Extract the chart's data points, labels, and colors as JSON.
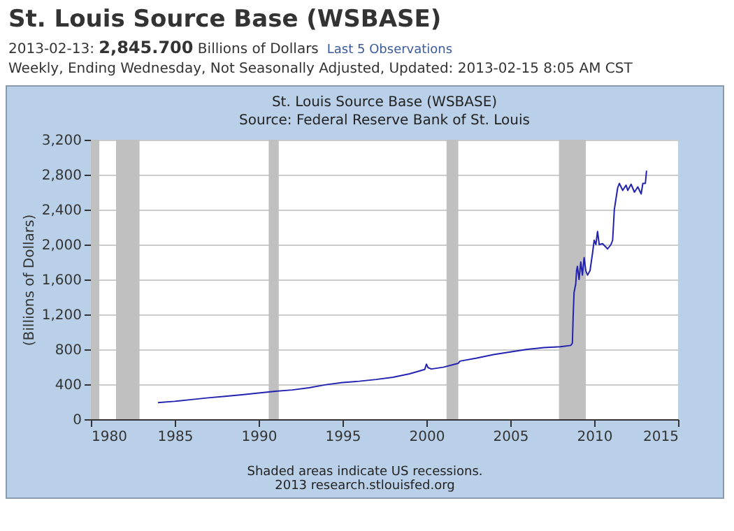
{
  "chart_data": {
    "type": "line",
    "title": "St. Louis Source Base (WSBASE)",
    "subtitle": "2013-02-13: 2,845.700 Billions of Dollars",
    "annotations": [
      "Last 5 Observations",
      "Weekly, Ending Wednesday, Not Seasonally Adjusted, Updated: 2013-02-15 8:05 AM CST",
      "St. Louis Source Base (WSBASE)",
      "Source: Federal Reserve Bank of St. Louis",
      "Shaded areas indicate US recessions.",
      "2013 research.stlouisfed.org"
    ],
    "ylabel": "(Billions of Dollars)",
    "x": [
      1984.0,
      1985,
      1986,
      1987,
      1988,
      1989,
      1990,
      1991,
      1992,
      1993,
      1994,
      1995,
      1996,
      1997,
      1998,
      1999,
      1999.9,
      2000.0,
      2000.1,
      2000.3,
      2001,
      2001.9,
      2002,
      2003,
      2004,
      2005,
      2006,
      2007,
      2008,
      2008.6,
      2008.7,
      2008.75,
      2008.8,
      2008.9,
      2008.95,
      2009.0,
      2009.1,
      2009.2,
      2009.3,
      2009.4,
      2009.5,
      2009.6,
      2009.75,
      2009.9,
      2010.0,
      2010.1,
      2010.2,
      2010.3,
      2010.5,
      2010.8,
      2011.0,
      2011.1,
      2011.2,
      2011.4,
      2011.5,
      2011.7,
      2011.9,
      2012.0,
      2012.2,
      2012.4,
      2012.6,
      2012.8,
      2012.9,
      2013.05,
      2013.12
    ],
    "series": [
      {
        "color": "#2222b0",
        "values": [
          190,
          205,
          225,
          245,
          262,
          280,
          300,
          320,
          335,
          360,
          395,
          420,
          435,
          455,
          480,
          520,
          570,
          630,
          590,
          575,
          595,
          640,
          665,
          700,
          740,
          770,
          800,
          820,
          830,
          845,
          870,
          1200,
          1450,
          1550,
          1700,
          1750,
          1600,
          1800,
          1650,
          1850,
          1700,
          1650,
          1700,
          1900,
          2050,
          2000,
          2150,
          2000,
          2010,
          1950,
          2000,
          2050,
          2400,
          2650,
          2700,
          2620,
          2680,
          2620,
          2690,
          2600,
          2660,
          2580,
          2700,
          2700,
          2846
        ]
      }
    ],
    "xlim": [
      1980,
      2015
    ],
    "xticks": [
      1980,
      1985,
      1990,
      1995,
      2000,
      2005,
      2010,
      2015
    ],
    "ylim": [
      0,
      3200
    ],
    "yticks": [
      0,
      400,
      800,
      {
        "value": 1200,
        "label": "1,200"
      },
      {
        "value": 1600,
        "label": "1,600"
      },
      {
        "value": 2000,
        "label": "2,000"
      },
      {
        "value": 2400,
        "label": "2,400"
      },
      {
        "value": 2800,
        "label": "2,800"
      },
      {
        "value": 3200,
        "label": "3,200"
      }
    ],
    "bands": [
      {
        "axis": "x",
        "from": 1980.0,
        "to": 1980.5,
        "color": "#c0c0c0"
      },
      {
        "axis": "x",
        "from": 1981.5,
        "to": 1982.9,
        "color": "#c0c0c0"
      },
      {
        "axis": "x",
        "from": 1990.6,
        "to": 1991.2,
        "color": "#c0c0c0"
      },
      {
        "axis": "x",
        "from": 2001.2,
        "to": 2001.9,
        "color": "#c0c0c0"
      },
      {
        "axis": "x",
        "from": 2007.9,
        "to": 2009.5,
        "color": "#c0c0c0"
      }
    ],
    "grid": "y",
    "line_style": "solid",
    "marker": "none"
  }
}
